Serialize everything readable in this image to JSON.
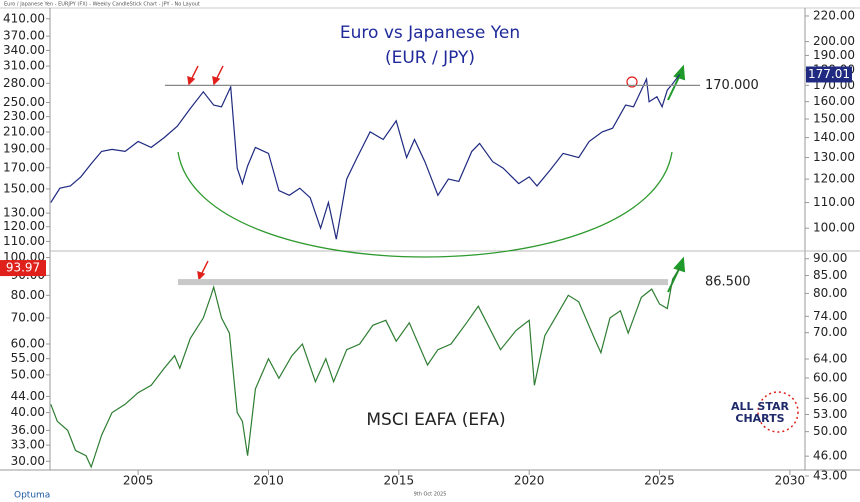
{
  "header": "Euro / Japanese Yen - EURJPY (FX) - Weekly CandleStick Chart - JPY - No Layout",
  "footer_date": "9th Oct 2025",
  "brand": "Optuma",
  "logo": {
    "line1": "ALL STAR",
    "line2": "CHARTS"
  },
  "xlim": [
    2001.62,
    2030.58
  ],
  "xticks": [
    2005,
    2010,
    2015,
    2020,
    2025,
    2030
  ],
  "chart_data": [
    {
      "type": "line",
      "title": "Euro vs Japanese Yen",
      "subtitle": "(EUR / JPY)",
      "color": "#1f2a80",
      "scale": "log",
      "axis_side": "right",
      "ylim": [
        92.9,
        226.6
      ],
      "yticks": [
        {
          "value": 220,
          "label": "220.00"
        },
        {
          "value": 200,
          "label": "200.00"
        },
        {
          "value": 190,
          "label": "190.00"
        },
        {
          "value": 180,
          "label": "180.00"
        },
        {
          "value": 170,
          "label": "170.00"
        },
        {
          "value": 160,
          "label": "160.00"
        },
        {
          "value": 150,
          "label": "150.00"
        },
        {
          "value": 140,
          "label": "140.00"
        },
        {
          "value": 130,
          "label": "130.00"
        },
        {
          "value": 120,
          "label": "120.00"
        },
        {
          "value": 110,
          "label": "110.00"
        },
        {
          "value": 100,
          "label": "100.00"
        }
      ],
      "reference": {
        "value": 170,
        "label": "170.000"
      },
      "last_value": 177.01,
      "last_color": "#1f2a80",
      "x": [
        2001.65,
        2002.0,
        2002.4,
        2002.8,
        2003.2,
        2003.6,
        2004.0,
        2004.5,
        2005.0,
        2005.5,
        2006.0,
        2006.5,
        2007.0,
        2007.5,
        2007.9,
        2008.2,
        2008.55,
        2008.8,
        2009.0,
        2009.2,
        2009.5,
        2010.0,
        2010.4,
        2010.8,
        2011.2,
        2011.6,
        2012.0,
        2012.3,
        2012.6,
        2013.0,
        2013.4,
        2013.9,
        2014.4,
        2014.9,
        2015.3,
        2015.6,
        2016.0,
        2016.5,
        2016.9,
        2017.3,
        2017.8,
        2018.1,
        2018.6,
        2019.0,
        2019.6,
        2020.0,
        2020.3,
        2020.8,
        2021.3,
        2021.9,
        2022.3,
        2022.8,
        2023.2,
        2023.7,
        2024.0,
        2024.5,
        2024.6,
        2024.9,
        2025.1,
        2025.3,
        2025.5,
        2025.77
      ],
      "values": [
        110,
        116,
        117,
        121,
        127,
        133,
        134,
        133,
        138,
        135,
        140,
        146,
        156,
        166,
        158,
        157,
        169,
        125,
        118,
        126,
        135,
        132,
        115,
        113,
        116,
        112,
        100,
        110,
        96,
        120,
        130,
        143,
        139,
        149,
        130,
        139,
        128,
        113,
        120,
        119,
        133,
        137,
        128,
        125,
        118,
        121,
        117,
        124,
        132,
        130,
        138,
        143,
        145,
        158,
        157,
        174,
        160,
        163,
        157,
        167,
        171,
        177.01
      ]
    },
    {
      "type": "line",
      "title": "MSCI EAFA (EFA)",
      "color": "#2e7d32",
      "scale": "log",
      "axis_side": "left",
      "ylim": [
        27.5,
        437
      ],
      "yticks": [
        {
          "value": 410,
          "label": "410.00"
        },
        {
          "value": 370,
          "label": "370.00"
        },
        {
          "value": 340,
          "label": "340.00"
        },
        {
          "value": 310,
          "label": "310.00"
        },
        {
          "value": 280,
          "label": "280.00"
        },
        {
          "value": 250,
          "label": "250.00"
        },
        {
          "value": 230,
          "label": "230.00"
        },
        {
          "value": 210,
          "label": "210.00"
        },
        {
          "value": 190,
          "label": "190.00"
        },
        {
          "value": 170,
          "label": "170.00"
        },
        {
          "value": 150,
          "label": "150.00"
        },
        {
          "value": 130,
          "label": "130.00"
        },
        {
          "value": 120,
          "label": "120.00"
        },
        {
          "value": 110,
          "label": "110.00"
        },
        {
          "value": 100,
          "label": "100.00"
        },
        {
          "value": 90,
          "label": "90.00"
        },
        {
          "value": 80,
          "label": "80.00"
        },
        {
          "value": 70,
          "label": "70.00"
        },
        {
          "value": 60,
          "label": "60.00"
        },
        {
          "value": 55,
          "label": "55.00"
        },
        {
          "value": 50,
          "label": "50.00"
        },
        {
          "value": 44,
          "label": "44.00"
        },
        {
          "value": 40,
          "label": "40.00"
        },
        {
          "value": 36,
          "label": "36.00"
        },
        {
          "value": 33,
          "label": "33.00"
        },
        {
          "value": 30,
          "label": "30.00"
        }
      ],
      "y2lim": [
        43,
        92.4
      ],
      "y2ticks": [
        {
          "value": 90,
          "label": "90.00"
        },
        {
          "value": 85,
          "label": "85.00"
        },
        {
          "value": 80,
          "label": "80.00"
        },
        {
          "value": 74,
          "label": "74.00"
        },
        {
          "value": 70,
          "label": "70.00"
        },
        {
          "value": 64,
          "label": "64.00"
        },
        {
          "value": 60,
          "label": "60.00"
        },
        {
          "value": 56,
          "label": "56.00"
        },
        {
          "value": 53,
          "label": "53.00"
        },
        {
          "value": 50,
          "label": "50.00"
        },
        {
          "value": 46,
          "label": "46.00"
        },
        {
          "value": 43,
          "label": "43.00"
        }
      ],
      "reference": {
        "value": 86.5,
        "label": "86.500"
      },
      "last_value": 93.97,
      "last_color": "#e0201b",
      "x": [
        2001.65,
        2001.9,
        2002.3,
        2002.6,
        2003.0,
        2003.2,
        2003.6,
        2004.0,
        2004.5,
        2005.0,
        2005.5,
        2006.0,
        2006.4,
        2006.6,
        2007.0,
        2007.5,
        2007.8,
        2007.9,
        2008.2,
        2008.5,
        2008.8,
        2009.0,
        2009.2,
        2009.5,
        2010.0,
        2010.4,
        2010.9,
        2011.3,
        2011.8,
        2012.2,
        2012.5,
        2013.0,
        2013.5,
        2014.0,
        2014.5,
        2014.9,
        2015.4,
        2016.1,
        2016.5,
        2017.0,
        2017.6,
        2018.05,
        2018.9,
        2019.5,
        2020.0,
        2020.2,
        2020.6,
        2021.0,
        2021.5,
        2021.9,
        2022.5,
        2022.75,
        2023.1,
        2023.5,
        2023.8,
        2024.3,
        2024.7,
        2025.0,
        2025.3,
        2025.5,
        2025.77
      ],
      "values": [
        42,
        38,
        36,
        32,
        31,
        29,
        35,
        40,
        42,
        45,
        47,
        52,
        56,
        52,
        62,
        70,
        80,
        84,
        70,
        64,
        40,
        38,
        31,
        46,
        55,
        49,
        56,
        60,
        48,
        55,
        48,
        58,
        60,
        67,
        69,
        61,
        68,
        53,
        58,
        60,
        68,
        75,
        58,
        65,
        69,
        47,
        63,
        70,
        80,
        77,
        62,
        57,
        70,
        73,
        64,
        79,
        83,
        76,
        74,
        88,
        93.97
      ]
    }
  ]
}
